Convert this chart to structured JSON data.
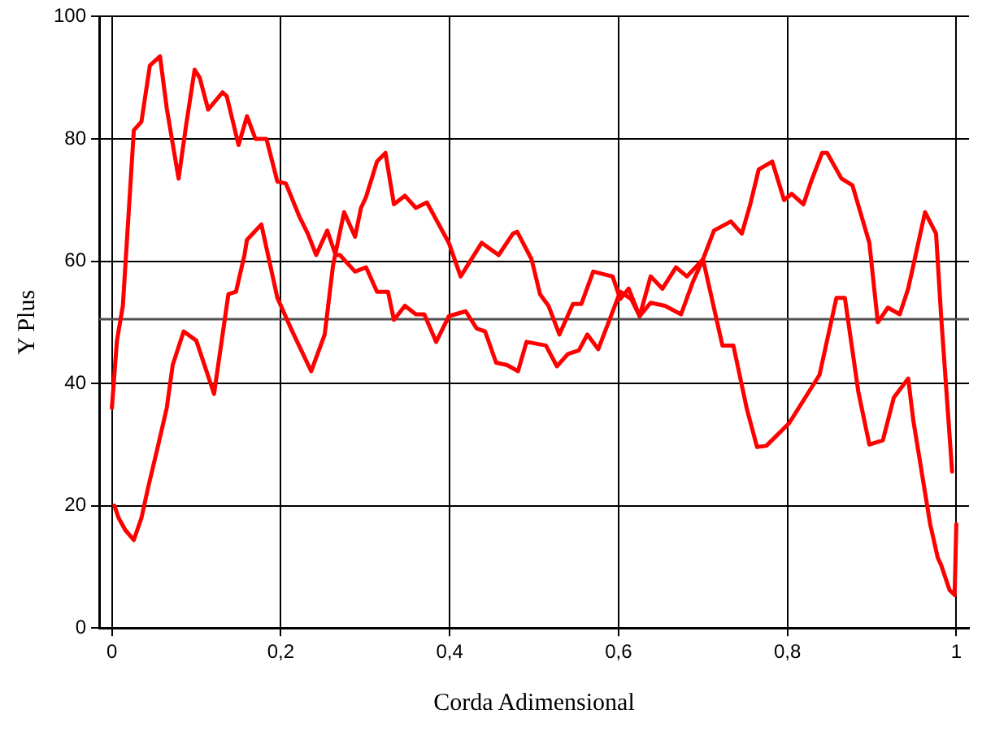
{
  "chart_data": {
    "type": "line",
    "xlabel": "Corda Adimensional",
    "ylabel": "Y Plus",
    "xlim": [
      -0.015,
      1.015
    ],
    "ylim": [
      0,
      100
    ],
    "xticks": [
      0,
      {
        "value": 0.2,
        "label": "0,2"
      },
      {
        "value": 0.4,
        "label": "0,4"
      },
      {
        "value": 0.6,
        "label": "0,6"
      },
      {
        "value": 0.8,
        "label": "0,8"
      },
      1
    ],
    "yticks": [
      0,
      20,
      40,
      60,
      80,
      100
    ],
    "grid": true,
    "line_style": "solid",
    "marker": "none",
    "legend": false,
    "ref_lines": [
      {
        "axis": "y",
        "value": 50.5,
        "color": "#505050",
        "line_style": "solid"
      }
    ],
    "series": [
      {
        "color": "#ff0000",
        "x": [
          0.003,
          0.008,
          0.016,
          0.026,
          0.035,
          0.043,
          0.055,
          0.065,
          0.072,
          0.085,
          0.1,
          0.121,
          0.138,
          0.147,
          0.157,
          0.16,
          0.177,
          0.196,
          0.212,
          0.236,
          0.252,
          0.262,
          0.275,
          0.288,
          0.295,
          0.301,
          0.314,
          0.324,
          0.334,
          0.347,
          0.36,
          0.373,
          0.399,
          0.413,
          0.438,
          0.458,
          0.475,
          0.48,
          0.497,
          0.507,
          0.517,
          0.53,
          0.546,
          0.556,
          0.57,
          0.593,
          0.602,
          0.612,
          0.625,
          0.638,
          0.652,
          0.668,
          0.681,
          0.7,
          0.713,
          0.733,
          0.746,
          0.756,
          0.766,
          0.782,
          0.796,
          0.805,
          0.819,
          0.828,
          0.841,
          0.847,
          0.864,
          0.877,
          0.897,
          0.907,
          0.919,
          0.933,
          0.943,
          0.963,
          0.976,
          0.982,
          0.995
        ],
        "values": [
          20,
          18,
          16,
          14.4,
          18,
          23,
          30,
          36,
          43,
          48.5,
          47,
          38.3,
          54.6,
          55,
          61,
          63.5,
          66,
          54,
          49,
          42,
          48,
          59.4,
          68,
          64,
          68.7,
          70.5,
          76.3,
          77.7,
          69.3,
          70.7,
          68.7,
          69.6,
          63,
          57.5,
          63,
          61,
          64.5,
          64.8,
          60.3,
          54.6,
          52.7,
          48,
          53,
          53,
          58.3,
          57.5,
          53.8,
          55.5,
          51,
          57.5,
          55.5,
          59,
          57.5,
          60.3,
          65,
          66.5,
          64.5,
          69.3,
          75,
          76.3,
          70,
          71,
          69.3,
          73,
          77.7,
          77.7,
          73.5,
          72.4,
          63,
          50,
          52.4,
          51.3,
          55.5,
          68,
          64.5,
          51,
          25.6
        ]
      },
      {
        "color": "#ff0000",
        "x": [
          0,
          0.006,
          0.013,
          0.026,
          0.035,
          0.045,
          0.057,
          0.065,
          0.079,
          0.088,
          0.098,
          0.104,
          0.114,
          0.131,
          0.136,
          0.15,
          0.16,
          0.17,
          0.183,
          0.196,
          0.206,
          0.222,
          0.232,
          0.242,
          0.255,
          0.265,
          0.27,
          0.288,
          0.301,
          0.314,
          0.327,
          0.334,
          0.347,
          0.36,
          0.37,
          0.384,
          0.399,
          0.419,
          0.432,
          0.442,
          0.455,
          0.468,
          0.481,
          0.491,
          0.514,
          0.527,
          0.54,
          0.553,
          0.563,
          0.576,
          0.602,
          0.615,
          0.625,
          0.638,
          0.655,
          0.674,
          0.688,
          0.7,
          0.723,
          0.736,
          0.752,
          0.764,
          0.775,
          0.802,
          0.838,
          0.858,
          0.868,
          0.884,
          0.897,
          0.913,
          0.926,
          0.943,
          0.949,
          0.969,
          0.978,
          0.982,
          0.992,
          0.998,
          1
        ],
        "values": [
          36,
          47,
          52.7,
          81.4,
          82.8,
          92,
          93.5,
          85,
          73.5,
          82.3,
          91.3,
          90,
          84.8,
          87.6,
          87,
          79,
          83.7,
          80,
          80,
          73,
          72.7,
          67.3,
          64.5,
          61,
          65,
          61,
          61,
          58.3,
          59,
          55,
          55,
          50.4,
          52.7,
          51.3,
          51.3,
          46.8,
          51,
          51.8,
          49,
          48.5,
          43.4,
          43,
          42,
          46.8,
          46.2,
          42.8,
          44.8,
          45.4,
          48,
          45.6,
          55,
          53.8,
          51,
          53.2,
          52.7,
          51.3,
          56.6,
          60.3,
          46.2,
          46.2,
          35.8,
          29.6,
          29.8,
          33.5,
          41.4,
          54,
          54,
          38.6,
          30,
          30.7,
          37.7,
          40.8,
          34,
          17,
          11.5,
          10.3,
          6.2,
          5.4,
          17
        ]
      }
    ]
  }
}
